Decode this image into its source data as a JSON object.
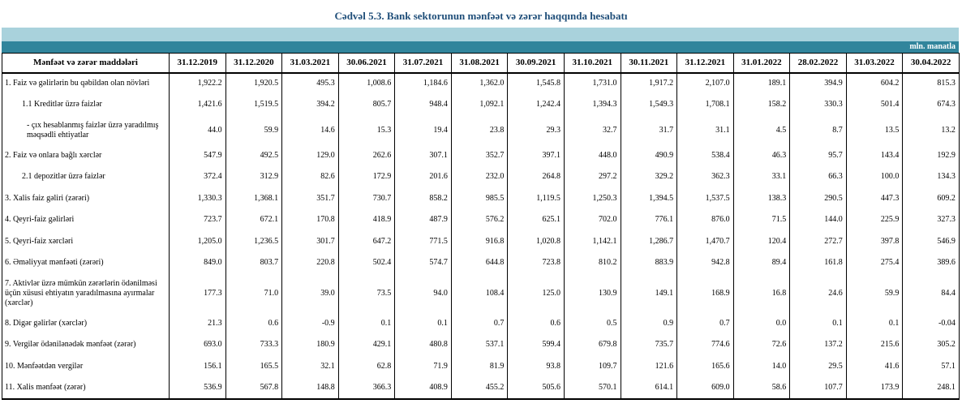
{
  "title": "Cədvəl 5.3. Bank sektorunun mənfəət və zərər haqqında hesabatı",
  "unit": "mln. manatla",
  "header": {
    "label": "Mənfəət və zərər maddələri",
    "dates": [
      "31.12.2019",
      "31.12.2020",
      "31.03.2021",
      "30.06.2021",
      "31.07.2021",
      "31.08.2021",
      "30.09.2021",
      "31.10.2021",
      "30.11.2021",
      "31.12.2021",
      "31.01.2022",
      "28.02.2022",
      "31.03.2022",
      "30.04.2022"
    ]
  },
  "rows": [
    {
      "label": "1. Faiz və gəlirlərin bu qəbildən olan növləri",
      "level": 0,
      "h": "h26",
      "values": [
        "1,922.2",
        "1,920.5",
        "495.3",
        "1,008.6",
        "1,184.6",
        "1,362.0",
        "1,545.8",
        "1,731.0",
        "1,917.2",
        "2,107.0",
        "189.1",
        "394.9",
        "604.2",
        "815.3"
      ]
    },
    {
      "label": "1.1 Kreditlər üzrə faizlər",
      "level": 1,
      "h": "h26",
      "values": [
        "1,421.6",
        "1,519.5",
        "394.2",
        "805.7",
        "948.4",
        "1,092.1",
        "1,242.4",
        "1,394.3",
        "1,549.3",
        "1,708.1",
        "158.2",
        "330.3",
        "501.4",
        "674.3"
      ]
    },
    {
      "label": "- çıx hesablanmış faizlər üzrə yaradılmış məqsədli ehtiyatlar",
      "level": 2,
      "h": "h36",
      "values": [
        "44.0",
        "59.9",
        "14.6",
        "15.3",
        "19.4",
        "23.8",
        "29.3",
        "32.7",
        "31.7",
        "31.1",
        "4.5",
        "8.7",
        "13.5",
        "13.2"
      ]
    },
    {
      "label": "2. Faiz və onlara bağlı xərclər",
      "level": 0,
      "h": "h26",
      "values": [
        "547.9",
        "492.5",
        "129.0",
        "262.6",
        "307.1",
        "352.7",
        "397.1",
        "448.0",
        "490.9",
        "538.4",
        "46.3",
        "95.7",
        "143.4",
        "192.9"
      ]
    },
    {
      "label": "2.1 depozitlər üzrə faizlər",
      "level": 1,
      "h": "h26",
      "values": [
        "372.4",
        "312.9",
        "82.6",
        "172.9",
        "201.6",
        "232.0",
        "264.8",
        "297.2",
        "329.2",
        "362.3",
        "33.1",
        "66.3",
        "100.0",
        "134.3"
      ]
    },
    {
      "label": "3. Xalis faiz gəliri (zərəri)",
      "level": 0,
      "h": "h26",
      "values": [
        "1,330.3",
        "1,368.1",
        "351.7",
        "730.7",
        "858.2",
        "985.5",
        "1,119.5",
        "1,250.3",
        "1,394.5",
        "1,537.5",
        "138.3",
        "290.5",
        "447.3",
        "609.2"
      ]
    },
    {
      "label": "4. Qeyri-faiz gəlirləri",
      "level": 0,
      "h": "h26",
      "values": [
        "723.7",
        "672.1",
        "170.8",
        "418.9",
        "487.9",
        "576.2",
        "625.1",
        "702.0",
        "776.1",
        "876.0",
        "71.5",
        "144.0",
        "225.9",
        "327.3"
      ]
    },
    {
      "label": "5. Qeyri-faiz xərcləri",
      "level": 0,
      "h": "h26",
      "values": [
        "1,205.0",
        "1,236.5",
        "301.7",
        "647.2",
        "771.5",
        "916.8",
        "1,020.8",
        "1,142.1",
        "1,286.7",
        "1,470.7",
        "120.4",
        "272.7",
        "397.8",
        "546.9"
      ]
    },
    {
      "label": "6. Əməliyyat mənfəəti (zərəri)",
      "level": 0,
      "h": "h26",
      "values": [
        "849.0",
        "803.7",
        "220.8",
        "502.4",
        "574.7",
        "644.8",
        "723.8",
        "810.2",
        "883.9",
        "942.8",
        "89.4",
        "161.8",
        "275.4",
        "389.6"
      ]
    },
    {
      "label": "7. Aktivlər üzrə mümkün zərərlərin ödənilməsi üçün xüsusi ehtiyatın yaradılmasına ayırmalar (xərclər)",
      "level": 0,
      "h": "h48",
      "values": [
        "177.3",
        "71.0",
        "39.0",
        "73.5",
        "94.0",
        "108.4",
        "125.0",
        "130.9",
        "149.1",
        "168.9",
        "16.8",
        "24.6",
        "59.9",
        "84.4"
      ]
    },
    {
      "label": "8. Digər gəlirlər (xərclər)",
      "level": 0,
      "h": "h26",
      "values": [
        "21.3",
        "0.6",
        "-0.9",
        "0.1",
        "0.1",
        "0.7",
        "0.6",
        "0.5",
        "0.9",
        "0.7",
        "0.0",
        "0.1",
        "0.1",
        "-0.04"
      ]
    },
    {
      "label": "9. Vergilər ödənilənədək mənfəət (zərər)",
      "level": 0,
      "h": "h26",
      "values": [
        "693.0",
        "733.3",
        "180.9",
        "429.1",
        "480.8",
        "537.1",
        "599.4",
        "679.8",
        "735.7",
        "774.6",
        "72.6",
        "137.2",
        "215.6",
        "305.2"
      ]
    },
    {
      "label": "10. Mənfəətdən vergilər",
      "level": 0,
      "h": "h26",
      "values": [
        "156.1",
        "165.5",
        "32.1",
        "62.8",
        "71.9",
        "81.9",
        "93.8",
        "109.7",
        "121.6",
        "165.6",
        "14.0",
        "29.5",
        "41.6",
        "57.1"
      ]
    },
    {
      "label": "11. Xalis mənfəət (zərər)",
      "level": 0,
      "h": "h26",
      "values": [
        "536.9",
        "567.8",
        "148.8",
        "366.3",
        "408.9",
        "455.2",
        "505.6",
        "570.1",
        "614.1",
        "609.0",
        "58.6",
        "107.7",
        "173.9",
        "248.1"
      ]
    }
  ]
}
